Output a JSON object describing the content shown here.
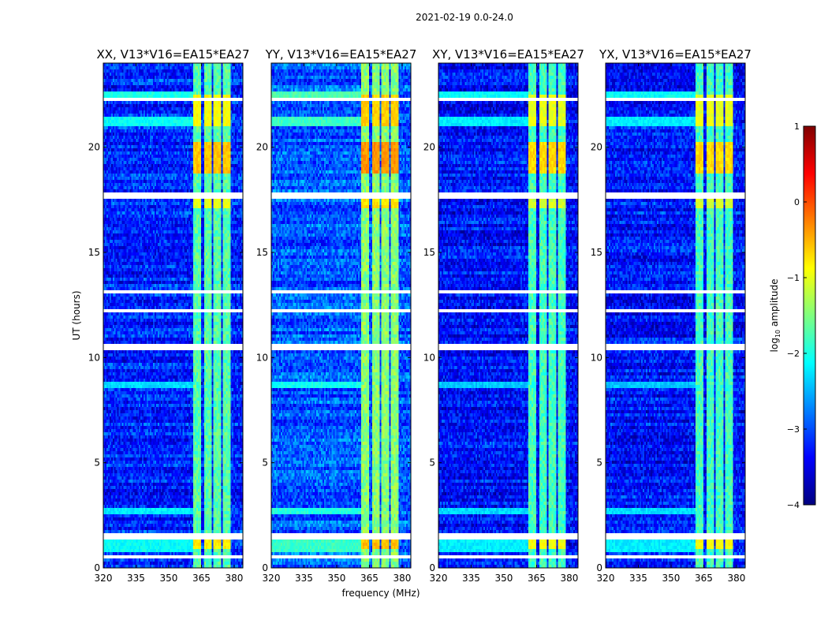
{
  "suptitle": "2021-02-19 0.0-24.0",
  "ylabel": "UT (hours)",
  "xlabel": "frequency (MHz)",
  "colorbar": {
    "label": "log",
    "label_sub": "10",
    "label_suffix": " amplitude",
    "range": [
      -4,
      1
    ],
    "ticks": [
      {
        "value": 1,
        "label": "1"
      },
      {
        "value": 0,
        "label": "0"
      },
      {
        "value": -1,
        "label": "−1"
      },
      {
        "value": -2,
        "label": "−2"
      },
      {
        "value": -3,
        "label": "−3"
      },
      {
        "value": -4,
        "label": "−4"
      }
    ],
    "stops": [
      "#00007f",
      "#0000ff",
      "#007fff",
      "#00ffff",
      "#7fff7f",
      "#ffff00",
      "#ff7f00",
      "#ff0000",
      "#7f0000"
    ]
  },
  "chart_data": {
    "type": "heatmap",
    "x_range_mhz": [
      320,
      384
    ],
    "y_range_hours": [
      0,
      24
    ],
    "x_ticks": [
      {
        "value": 320,
        "label": "320"
      },
      {
        "value": 335,
        "label": "335"
      },
      {
        "value": 350,
        "label": "350"
      },
      {
        "value": 365,
        "label": "365"
      },
      {
        "value": 380,
        "label": "380"
      }
    ],
    "y_ticks": [
      {
        "value": 0,
        "label": "0"
      },
      {
        "value": 5,
        "label": "5"
      },
      {
        "value": 10,
        "label": "10"
      },
      {
        "value": 15,
        "label": "15"
      },
      {
        "value": 20,
        "label": "20"
      }
    ],
    "panels": [
      {
        "title": "XX, V13*V16=EA15*EA27",
        "pol": "XX",
        "boost": 0.0
      },
      {
        "title": "YY, V13*V16=EA15*EA27",
        "pol": "YY",
        "boost": 0.25
      },
      {
        "title": "XY, V13*V16=EA15*EA27",
        "pol": "XY",
        "boost": -0.1
      },
      {
        "title": "YX, V13*V16=EA15*EA27",
        "pol": "YX",
        "boost": -0.1
      }
    ],
    "base_log_amplitude": -3.2,
    "rfi_band_mhz": [
      [
        361,
        365
      ],
      [
        366,
        369.5
      ],
      [
        370.5,
        374
      ],
      [
        375,
        378.5
      ]
    ],
    "rfi_level": -1.7,
    "strong_rfi_hours": [
      {
        "t0": 0.9,
        "t1": 1.4,
        "level": -0.8
      },
      {
        "t0": 18.8,
        "t1": 20.3,
        "level": -0.6
      },
      {
        "t0": 21.0,
        "t1": 22.5,
        "level": -0.9
      },
      {
        "t0": 17.1,
        "t1": 17.5,
        "level": -1.0
      }
    ],
    "flagged_hours": [
      [
        0.5,
        0.6
      ],
      [
        1.4,
        1.6
      ],
      [
        3.4,
        3.5
      ],
      [
        7.6,
        7.7
      ],
      [
        10.4,
        10.6
      ],
      [
        12.2,
        12.3
      ],
      [
        13.1,
        13.2
      ],
      [
        15.1,
        15.2
      ],
      [
        15.4,
        15.5
      ],
      [
        17.6,
        17.9
      ],
      [
        22.2,
        22.3
      ],
      [
        22.9,
        23.0
      ],
      [
        23.5,
        23.6
      ]
    ],
    "broadband_hours": [
      {
        "t0": 0.8,
        "t1": 1.4,
        "level": -2.1
      },
      {
        "t0": 2.6,
        "t1": 2.8,
        "level": -2.2
      },
      {
        "t0": 8.6,
        "t1": 8.9,
        "level": -2.3
      },
      {
        "t0": 21.0,
        "t1": 21.5,
        "level": -2.1
      },
      {
        "t0": 22.4,
        "t1": 22.6,
        "level": -2.0
      }
    ]
  }
}
